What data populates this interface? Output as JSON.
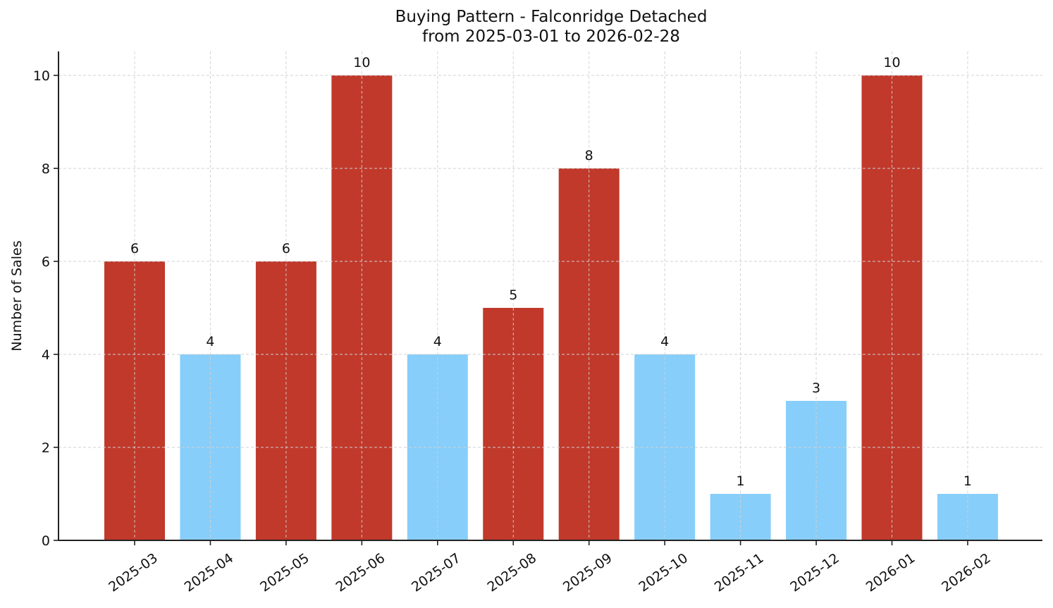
{
  "title": {
    "line1": "Buying Pattern - Falconridge Detached",
    "line2": "from 2025-03-01 to 2026-02-28"
  },
  "colors": {
    "high": "#c0392b",
    "low": "#87cefa",
    "axis": "#222222",
    "grid": "#d0d0d0"
  },
  "chart_data": {
    "type": "bar",
    "title": "Buying Pattern - Falconridge Detached\nfrom 2025-03-01 to 2026-02-28",
    "xlabel": "",
    "ylabel": "Number of Sales",
    "categories": [
      "2025-03",
      "2025-04",
      "2025-05",
      "2025-06",
      "2025-07",
      "2025-08",
      "2025-09",
      "2025-10",
      "2025-11",
      "2025-12",
      "2026-01",
      "2026-02"
    ],
    "values": [
      6,
      4,
      6,
      10,
      4,
      5,
      8,
      4,
      1,
      3,
      10,
      1
    ],
    "bar_colors": [
      "#c0392b",
      "#87cefa",
      "#c0392b",
      "#c0392b",
      "#87cefa",
      "#c0392b",
      "#c0392b",
      "#87cefa",
      "#87cefa",
      "#87cefa",
      "#c0392b",
      "#87cefa"
    ],
    "ylim": [
      0,
      10.5
    ],
    "yticks": [
      0,
      2,
      4,
      6,
      8,
      10
    ],
    "grid": true,
    "grid_style": "dashed",
    "data_labels": true,
    "x_tick_rotation": 35,
    "legend": null
  }
}
